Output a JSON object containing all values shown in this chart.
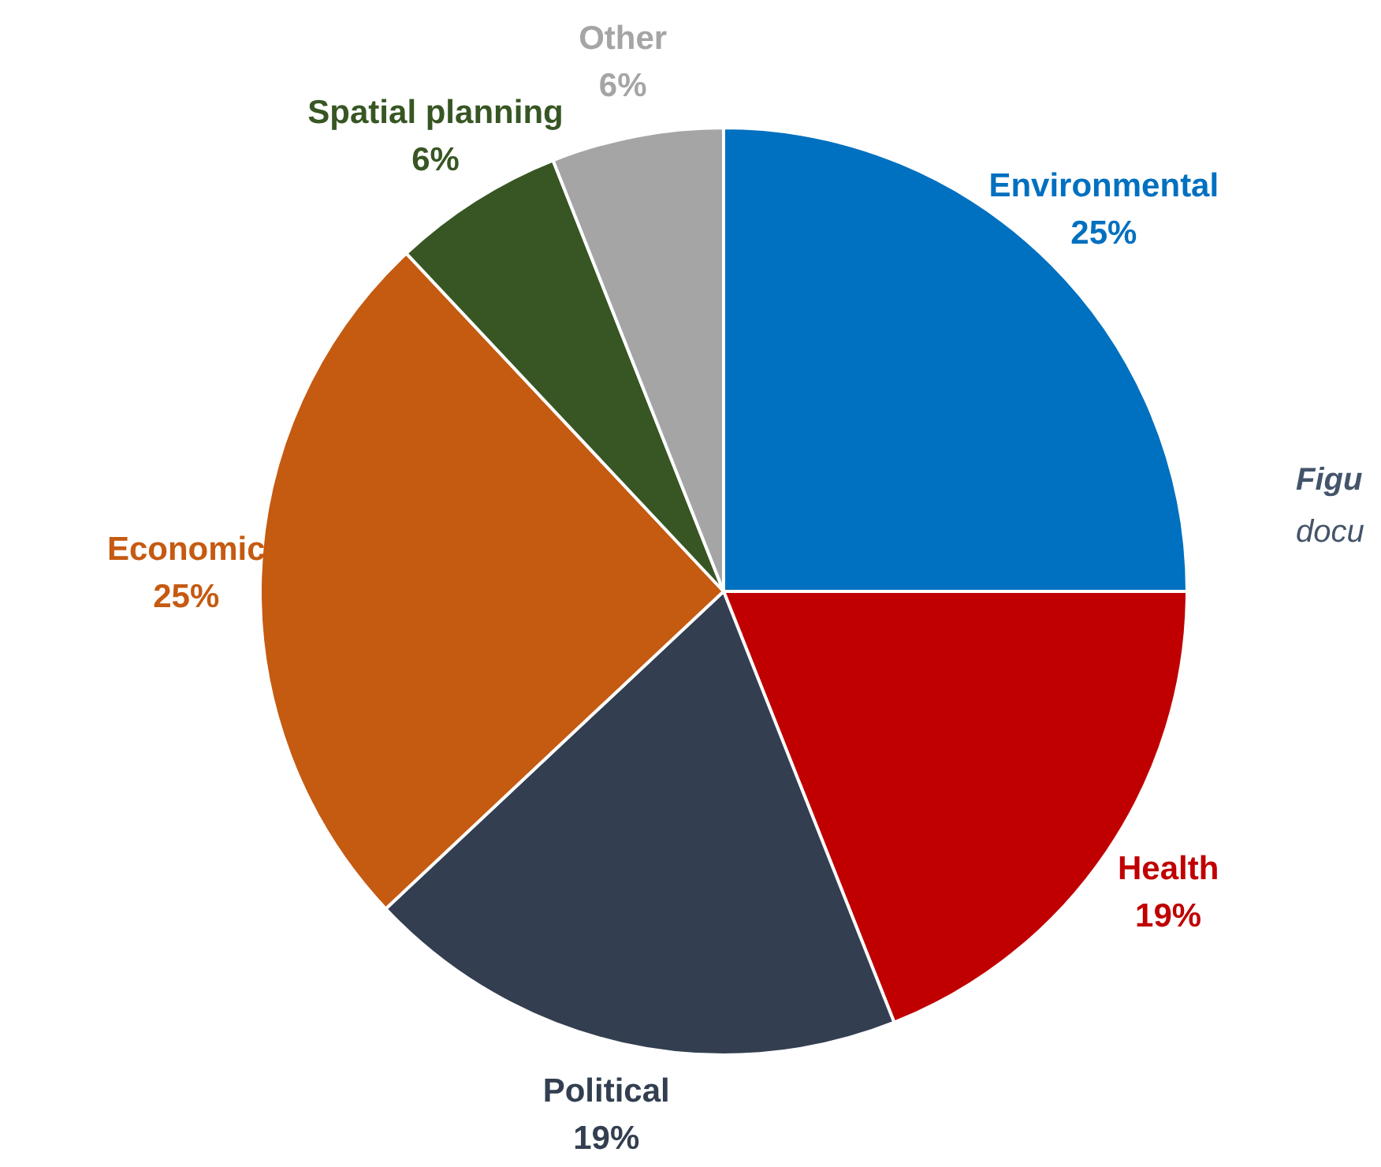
{
  "chart_data": {
    "type": "pie",
    "categories": [
      "Environmental",
      "Health",
      "Political",
      "Economic",
      "Spatial planning",
      "Other"
    ],
    "values": [
      25,
      19,
      19,
      25,
      6,
      6
    ],
    "colors": [
      "#0070c0",
      "#c00000",
      "#333f50",
      "#c55a11",
      "#375623",
      "#a5a5a5"
    ],
    "value_labels": [
      "25%",
      "19%",
      "19%",
      "25%",
      "6%",
      "6%"
    ],
    "legend": false,
    "annotations": [
      "Figu",
      "docu"
    ]
  }
}
